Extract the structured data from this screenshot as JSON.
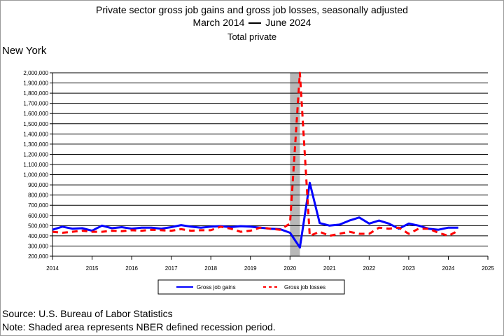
{
  "title": {
    "line1": "Private sector gross job gains and gross job losses, seasonally adjusted",
    "line2_start": "March 2014",
    "line2_end": "June 2024",
    "line3": "Total private"
  },
  "state": "New York",
  "source": "Source: U.S. Bureau of Labor Statistics",
  "note": "Note: Shaded area represents NBER defined recession period.",
  "chart_data": {
    "type": "line",
    "x_ticks": [
      "2014",
      "2015",
      "2016",
      "2017",
      "2018",
      "2019",
      "2020",
      "2021",
      "2022",
      "2023",
      "2024",
      "2025"
    ],
    "xlim": [
      2014,
      2025
    ],
    "ylim": [
      200000,
      2000000
    ],
    "y_ticks": [
      "200,000",
      "300,000",
      "400,000",
      "500,000",
      "600,000",
      "700,000",
      "800,000",
      "900,000",
      "1,000,000",
      "1,100,000",
      "1,200,000",
      "1,300,000",
      "1,400,000",
      "1,500,000",
      "1,600,000",
      "1,700,000",
      "1,800,000",
      "1,900,000",
      "2,000,000"
    ],
    "grid": true,
    "legend_position": "bottom",
    "recession": {
      "start": 2020.0,
      "end": 2020.25,
      "color": "#b8b8b8"
    },
    "x": [
      2014.0,
      2014.25,
      2014.5,
      2014.75,
      2015.0,
      2015.25,
      2015.5,
      2015.75,
      2016.0,
      2016.25,
      2016.5,
      2016.75,
      2017.0,
      2017.25,
      2017.5,
      2017.75,
      2018.0,
      2018.25,
      2018.5,
      2018.75,
      2019.0,
      2019.25,
      2019.5,
      2019.75,
      2020.0,
      2020.25,
      2020.5,
      2020.75,
      2021.0,
      2021.25,
      2021.5,
      2021.75,
      2022.0,
      2022.25,
      2022.5,
      2022.75,
      2023.0,
      2023.25,
      2023.5,
      2023.75,
      2024.0,
      2024.25
    ],
    "series": [
      {
        "name": "Gross job gains",
        "color": "#0000ff",
        "dash": "solid",
        "values": [
          460000,
          490000,
          470000,
          475000,
          450000,
          500000,
          475000,
          485000,
          470000,
          480000,
          480000,
          470000,
          485000,
          505000,
          490000,
          480000,
          490000,
          495000,
          485000,
          495000,
          490000,
          480000,
          470000,
          465000,
          430000,
          285000,
          920000,
          525000,
          500000,
          510000,
          550000,
          580000,
          520000,
          550000,
          520000,
          470000,
          520000,
          500000,
          470000,
          460000,
          480000,
          480000
        ]
      },
      {
        "name": "Gross job losses",
        "color": "#ff0000",
        "dash": "dashed",
        "values": [
          440000,
          430000,
          440000,
          450000,
          440000,
          440000,
          450000,
          445000,
          455000,
          450000,
          460000,
          455000,
          450000,
          465000,
          450000,
          455000,
          455000,
          490000,
          470000,
          440000,
          450000,
          480000,
          470000,
          460000,
          520000,
          2000000,
          400000,
          440000,
          400000,
          420000,
          440000,
          420000,
          420000,
          480000,
          470000,
          480000,
          420000,
          470000,
          470000,
          430000,
          400000,
          450000
        ]
      }
    ]
  }
}
